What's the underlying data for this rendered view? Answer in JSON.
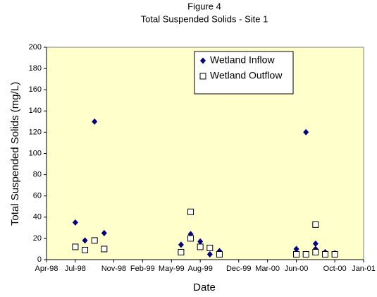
{
  "chart_data": {
    "type": "scatter",
    "title": "Figure 4",
    "subtitle": "Total Suspended Solids - Site 1",
    "xlabel": "Date",
    "ylabel": "Total Suspended Solids (mg/L)",
    "xlim": [
      "1998-04",
      "2001-01"
    ],
    "xticks": [
      {
        "value": "1998-04",
        "label": "Apr-98"
      },
      {
        "value": "1998-07",
        "label": "Jul-98"
      },
      {
        "value": "1998-11",
        "label": "Nov-98"
      },
      {
        "value": "1999-02",
        "label": "Feb-99"
      },
      {
        "value": "1999-05",
        "label": "May-99"
      },
      {
        "value": "1999-08",
        "label": "Aug-99"
      },
      {
        "value": "1999-12",
        "label": "Dec-99"
      },
      {
        "value": "2000-03",
        "label": "Mar-00"
      },
      {
        "value": "2000-06",
        "label": "Jun-00"
      },
      {
        "value": "2000-10",
        "label": "Oct-00"
      },
      {
        "value": "2001-01",
        "label": "Jan-01"
      }
    ],
    "ylim": [
      0,
      200
    ],
    "yticks": [
      0,
      20,
      40,
      60,
      80,
      100,
      120,
      140,
      160,
      180,
      200
    ],
    "legend": "top",
    "background": "#ffffcc",
    "series": [
      {
        "name": "Wetland Inflow",
        "color": "#000080",
        "marker": "diamond",
        "x": [
          "1998-07",
          "1998-08",
          "1998-09",
          "1998-10",
          "1999-06",
          "1999-07",
          "1999-08",
          "1999-09",
          "1999-10",
          "2000-06",
          "2000-07",
          "2000-08",
          "2000-08",
          "2000-09",
          "2000-10"
        ],
        "values": [
          35,
          18,
          130,
          25,
          14,
          24,
          17,
          5,
          8,
          10,
          120,
          15,
          10,
          7,
          6
        ]
      },
      {
        "name": "Wetland Outflow",
        "color": "#000000",
        "marker": "square",
        "x": [
          "1998-07",
          "1998-08",
          "1998-09",
          "1998-10",
          "1999-06",
          "1999-07",
          "1999-07",
          "1999-08",
          "1999-09",
          "1999-10",
          "2000-06",
          "2000-07",
          "2000-08",
          "2000-08",
          "2000-09",
          "2000-10"
        ],
        "values": [
          12,
          9,
          18,
          10,
          7,
          20,
          45,
          12,
          11,
          5,
          5,
          5,
          7,
          33,
          5,
          5
        ]
      }
    ]
  }
}
